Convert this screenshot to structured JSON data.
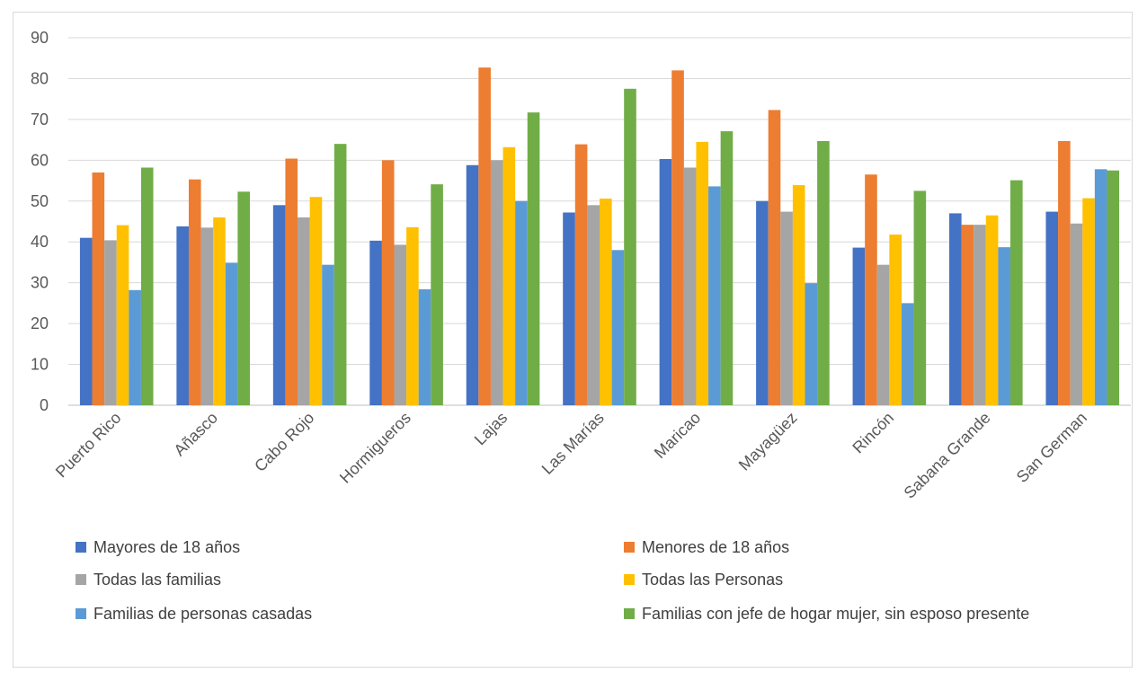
{
  "chart_data": {
    "type": "bar",
    "title": "",
    "xlabel": "",
    "ylabel": "",
    "ylim": [
      0,
      90
    ],
    "yticks": [
      0,
      10,
      20,
      30,
      40,
      50,
      60,
      70,
      80,
      90
    ],
    "grid": true,
    "legend_position": "bottom",
    "categories": [
      "Puerto Rico",
      "Añasco",
      "Cabo Rojo",
      "Hormigueros",
      "Lajas",
      "Las Marías",
      "Maricao",
      "Mayagüez",
      "Rincón",
      "Sabana Grande",
      "San German"
    ],
    "series": [
      {
        "name": "Mayores de 18 años",
        "color": "#4472c4",
        "values": [
          41,
          43.8,
          49,
          40.3,
          58.8,
          47.2,
          60.3,
          50,
          38.6,
          47,
          47.4
        ]
      },
      {
        "name": "Menores de 18 años",
        "color": "#ed7d31",
        "values": [
          57,
          55.3,
          60.4,
          60,
          82.7,
          63.9,
          82,
          72.3,
          56.5,
          44.2,
          64.7
        ]
      },
      {
        "name": "Todas las familias",
        "color": "#a5a5a5",
        "values": [
          40.4,
          43.5,
          46,
          39.3,
          60,
          49,
          58.2,
          47.4,
          34.4,
          44.2,
          44.5
        ]
      },
      {
        "name": "Todas las Personas",
        "color": "#ffc000",
        "values": [
          44.1,
          46,
          51,
          43.6,
          63.2,
          50.6,
          64.5,
          53.9,
          41.8,
          46.5,
          50.7
        ]
      },
      {
        "name": "Familias de personas casadas",
        "color": "#5b9bd5",
        "values": [
          28.2,
          34.9,
          34.4,
          28.4,
          50,
          38,
          53.6,
          29.9,
          25,
          38.7,
          57.8
        ]
      },
      {
        "name": "Familias con jefe de hogar mujer, sin esposo presente",
        "color": "#70ad47",
        "values": [
          58.2,
          52.3,
          64,
          54.1,
          71.7,
          77.5,
          67.1,
          64.7,
          52.5,
          55.1,
          57.5
        ]
      }
    ]
  }
}
